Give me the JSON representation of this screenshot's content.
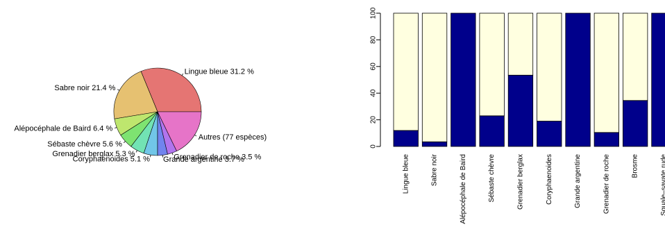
{
  "chart_data": [
    {
      "type": "pie",
      "title": "",
      "start_angle_deg": 0,
      "direction": "counterclockwise",
      "slices": [
        {
          "label": "Lingue bleue 31.2 %",
          "value": 31.2,
          "color": "#E57573"
        },
        {
          "label": "Sabre noir 21.4 %",
          "value": 21.4,
          "color": "#E6C171"
        },
        {
          "label": "Alépocéphale de Baird  6.4 %",
          "value": 6.4,
          "color": "#BEE66E"
        },
        {
          "label": "Sébaste chèvre  5.6 %",
          "value": 5.6,
          "color": "#7EE371"
        },
        {
          "label": "Grenadier berglax  5.3 %",
          "value": 5.3,
          "color": "#72E3B4"
        },
        {
          "label": "Coryphaenoides  5.1 %",
          "value": 5.1,
          "color": "#71C6E8"
        },
        {
          "label": "Grande argentine  3.7 %",
          "value": 3.7,
          "color": "#7184EE"
        },
        {
          "label": "Grenadier de roche  3.5 %",
          "value": 3.5,
          "color": "#B174ED"
        },
        {
          "label": "Autres (77 espèces)",
          "value": 17.8,
          "color": "#E674C8"
        }
      ]
    },
    {
      "type": "bar",
      "stacked": true,
      "title": "",
      "xlabel": "",
      "ylabel": "",
      "ylim": [
        0,
        100
      ],
      "yticks": [
        "0",
        "20",
        "40",
        "60",
        "80",
        "100"
      ],
      "grid": false,
      "categories": [
        "Lingue bleue",
        "Sabre noir",
        "Alépocéphale de Baird",
        "Sébaste chèvre",
        "Grenadier berglax",
        "Coryphaenoides",
        "Grande argentine",
        "Grenadier de roche",
        "Brosme",
        "Squale–savate rude"
      ],
      "series": [
        {
          "values": [
            12,
            3.5,
            100,
            23,
            53.5,
            19,
            100,
            10.5,
            34.5,
            100
          ],
          "color": "#00008B"
        },
        {
          "values": [
            88,
            96.5,
            0,
            77,
            46.5,
            81,
            0,
            89.5,
            65.5,
            0
          ],
          "color": "#FFFFE0"
        }
      ]
    }
  ]
}
